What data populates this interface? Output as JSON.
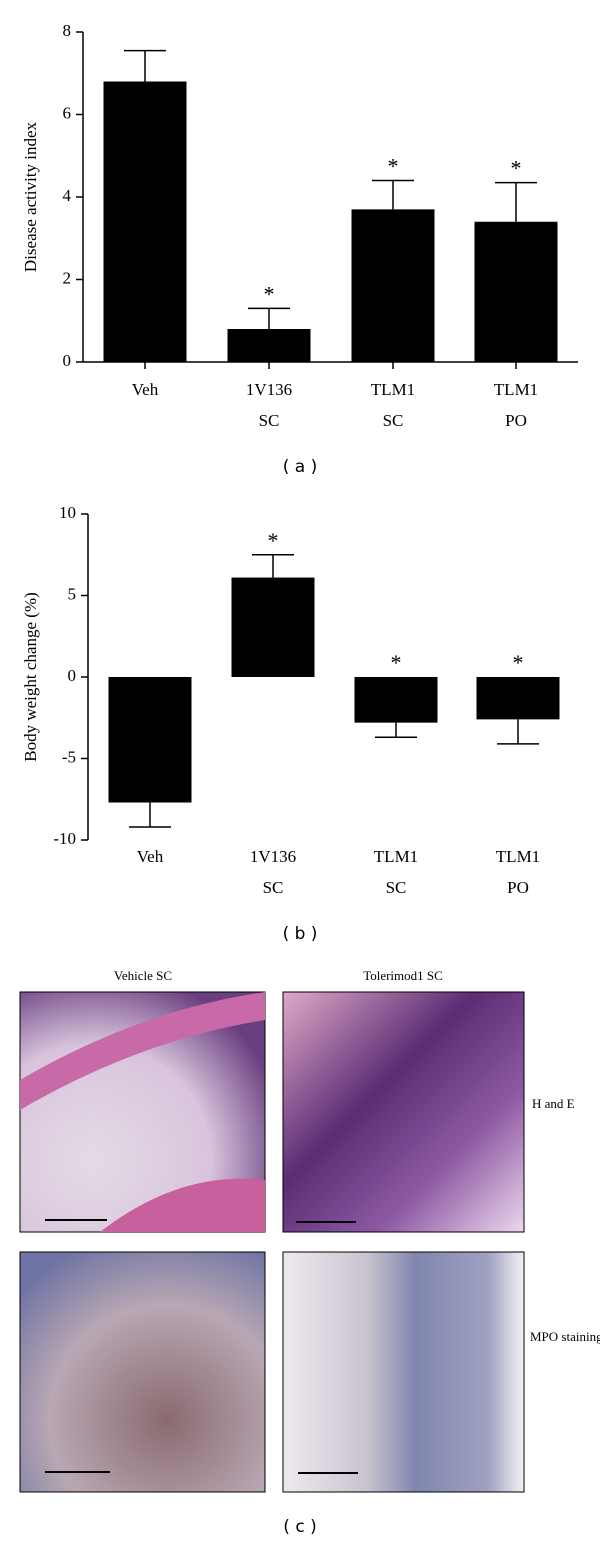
{
  "chart_data": [
    {
      "type": "bar",
      "ylabel": "Disease activity index",
      "categories": [
        [
          "Veh"
        ],
        [
          "1V136",
          "SC"
        ],
        [
          "TLM1",
          "SC"
        ],
        [
          "TLM1",
          "PO"
        ]
      ],
      "values": [
        6.8,
        0.8,
        3.7,
        3.4
      ],
      "errors": [
        0.75,
        0.5,
        0.7,
        0.95
      ],
      "markers": [
        null,
        "*",
        "*",
        "*"
      ],
      "color": "#000000",
      "ylim": [
        0,
        8
      ],
      "yticks": [
        0,
        2,
        4,
        6,
        8
      ],
      "panel_label": "( a )"
    },
    {
      "type": "bar",
      "ylabel": "Body weight change (%)",
      "categories": [
        [
          "Veh"
        ],
        [
          "1V136",
          "SC"
        ],
        [
          "TLM1",
          "SC"
        ],
        [
          "TLM1",
          "PO"
        ]
      ],
      "values": [
        -7.7,
        6.1,
        -2.8,
        -2.6
      ],
      "errors": [
        1.5,
        1.4,
        0.9,
        1.5
      ],
      "markers": [
        null,
        "*",
        "*",
        "*"
      ],
      "color": "#000000",
      "ylim": [
        -10,
        10
      ],
      "yticks": [
        -10,
        -5,
        0,
        5,
        10
      ],
      "panel_label": "( b )"
    }
  ],
  "histology": {
    "columns": [
      "Vehicle SC",
      "Tolerimod1 SC"
    ],
    "rows": [
      "H and E",
      "MPO staining"
    ],
    "panel_label": "( c )"
  }
}
